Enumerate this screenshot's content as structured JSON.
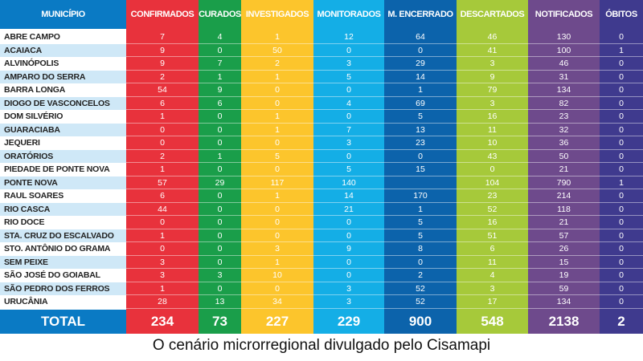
{
  "columns": [
    {
      "key": "municipio",
      "label": "MUNICÍPIO",
      "color": "#0a7ac4"
    },
    {
      "key": "confirmados",
      "label": "CONFIRMADOS",
      "color": "#e8323c"
    },
    {
      "key": "curados",
      "label": "CURADOS",
      "color": "#1a9e4a"
    },
    {
      "key": "investigados",
      "label": "INVESTIGADOS",
      "color": "#fcc52c"
    },
    {
      "key": "monitorados",
      "label": "MONITORADOS",
      "color": "#14aee6"
    },
    {
      "key": "encerrado",
      "label": "M. ENCERRADO",
      "color": "#0c63ab"
    },
    {
      "key": "descartados",
      "label": "DESCARTADOS",
      "color": "#a6c93a"
    },
    {
      "key": "notificados",
      "label": "NOTIFICADOS",
      "color": "#6e4a8c"
    },
    {
      "key": "obitos",
      "label": "ÓBITOS",
      "color": "#3f3a8e"
    }
  ],
  "rows": [
    [
      "ABRE CAMPO",
      "7",
      "4",
      "1",
      "12",
      "64",
      "46",
      "130",
      "0"
    ],
    [
      "ACAIACA",
      "9",
      "0",
      "50",
      "0",
      "0",
      "41",
      "100",
      "1"
    ],
    [
      "ALVINÓPOLIS",
      "9",
      "7",
      "2",
      "3",
      "29",
      "3",
      "46",
      "0"
    ],
    [
      "AMPARO DO SERRA",
      "2",
      "1",
      "1",
      "5",
      "14",
      "9",
      "31",
      "0"
    ],
    [
      "BARRA LONGA",
      "54",
      "9",
      "0",
      "0",
      "1",
      "79",
      "134",
      "0"
    ],
    [
      "DIOGO DE VASCONCELOS",
      "6",
      "6",
      "0",
      "4",
      "69",
      "3",
      "82",
      "0"
    ],
    [
      "DOM SILVÉRIO",
      "1",
      "0",
      "1",
      "0",
      "5",
      "16",
      "23",
      "0"
    ],
    [
      "GUARACIABA",
      "0",
      "0",
      "1",
      "7",
      "13",
      "11",
      "32",
      "0"
    ],
    [
      "JEQUERI",
      "0",
      "0",
      "0",
      "3",
      "23",
      "10",
      "36",
      "0"
    ],
    [
      "ORATÓRIOS",
      "2",
      "1",
      "5",
      "0",
      "0",
      "43",
      "50",
      "0"
    ],
    [
      "PIEDADE DE PONTE NOVA",
      "1",
      "0",
      "0",
      "5",
      "15",
      "0",
      "21",
      "0"
    ],
    [
      "PONTE NOVA",
      "57",
      "29",
      "117",
      "140",
      "",
      "104",
      "790",
      "1"
    ],
    [
      "RAUL SOARES",
      "6",
      "0",
      "1",
      "14",
      "170",
      "23",
      "214",
      "0"
    ],
    [
      "RIO CASCA",
      "44",
      "0",
      "0",
      "21",
      "1",
      "52",
      "118",
      "0"
    ],
    [
      "RIO DOCE",
      "0",
      "0",
      "0",
      "0",
      "5",
      "16",
      "21",
      "0"
    ],
    [
      "STA. CRUZ DO ESCALVADO",
      "1",
      "0",
      "0",
      "0",
      "5",
      "51",
      "57",
      "0"
    ],
    [
      "STO. ANTÔNIO DO GRAMA",
      "0",
      "0",
      "3",
      "9",
      "8",
      "6",
      "26",
      "0"
    ],
    [
      "SEM PEIXE",
      "3",
      "0",
      "1",
      "0",
      "0",
      "11",
      "15",
      "0"
    ],
    [
      "SÃO JOSÉ DO GOIABAL",
      "3",
      "3",
      "10",
      "0",
      "2",
      "4",
      "19",
      "0"
    ],
    [
      "SÃO PEDRO DOS FERROS",
      "1",
      "0",
      "0",
      "3",
      "52",
      "3",
      "59",
      "0"
    ],
    [
      "URUCÂNIA",
      "28",
      "13",
      "34",
      "3",
      "52",
      "17",
      "134",
      "0"
    ]
  ],
  "totals": [
    "TOTAL",
    "234",
    "73",
    "227",
    "229",
    "900",
    "548",
    "2138",
    "2"
  ],
  "caption": "O cenário microrregional divulgado pelo Cisamapi"
}
